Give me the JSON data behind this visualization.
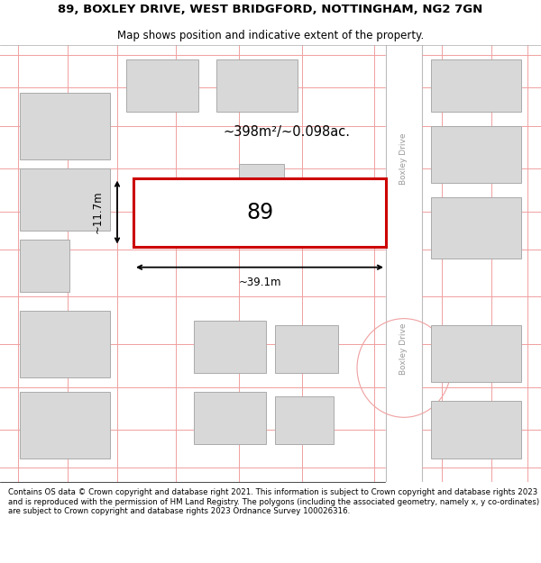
{
  "title_line1": "89, BOXLEY DRIVE, WEST BRIDGFORD, NOTTINGHAM, NG2 7GN",
  "title_line2": "Map shows position and indicative extent of the property.",
  "footer_text": "Contains OS data © Crown copyright and database right 2021. This information is subject to Crown copyright and database rights 2023 and is reproduced with the permission of HM Land Registry. The polygons (including the associated geometry, namely x, y co-ordinates) are subject to Crown copyright and database rights 2023 Ordnance Survey 100026316.",
  "road_line_color": "#f0a0a0",
  "building_fill": "#d8d8d8",
  "building_outline": "#aaaaaa",
  "plot_outline_color": "#cc0000",
  "street_label": "Boxley Drive",
  "plot_number": "89",
  "area_label": "~398m²/~0.098ac.",
  "width_label": "~39.1m",
  "height_label": "~11.7m",
  "road_white": "#ffffff",
  "road_border": "#cccccc"
}
